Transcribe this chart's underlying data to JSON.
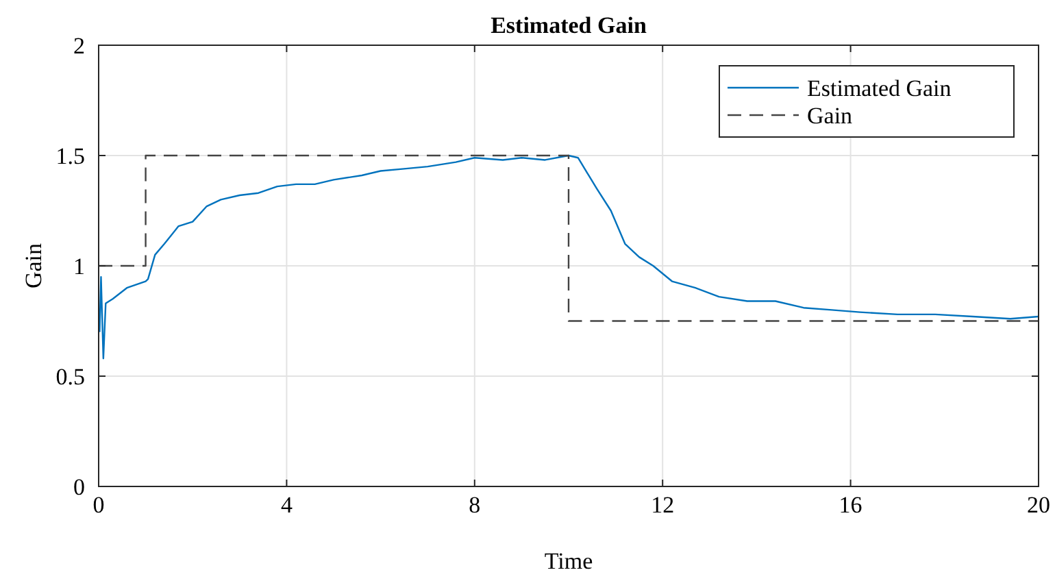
{
  "chart_data": {
    "type": "line",
    "title": "Estimated Gain",
    "xlabel": "Time",
    "ylabel": "Gain",
    "xlim": [
      0,
      20
    ],
    "ylim": [
      0,
      2
    ],
    "xticks": [
      0,
      4,
      8,
      12,
      16,
      20
    ],
    "yticks": [
      0,
      0.5,
      1,
      1.5,
      2
    ],
    "grid": true,
    "legend": "top right",
    "series": [
      {
        "name": "Estimated Gain",
        "type": "line",
        "color": "#0072bd",
        "line_style": "solid",
        "x": [
          0.02,
          0.05,
          0.1,
          0.15,
          0.3,
          0.6,
          1.0,
          1.05,
          1.2,
          1.4,
          1.7,
          2.0,
          2.3,
          2.6,
          3.0,
          3.4,
          3.8,
          4.2,
          4.6,
          5.0,
          5.6,
          6.0,
          6.5,
          7.0,
          7.6,
          8.0,
          8.6,
          9.0,
          9.5,
          10.0,
          10.2,
          10.4,
          10.6,
          10.9,
          11.2,
          11.5,
          11.8,
          12.2,
          12.7,
          13.2,
          13.8,
          14.4,
          15.0,
          15.6,
          16.2,
          17.0,
          17.8,
          18.6,
          19.4,
          20.0
        ],
        "values": [
          0.7,
          0.95,
          0.58,
          0.83,
          0.85,
          0.9,
          0.93,
          0.94,
          1.05,
          1.1,
          1.18,
          1.2,
          1.27,
          1.3,
          1.32,
          1.33,
          1.36,
          1.37,
          1.37,
          1.39,
          1.41,
          1.43,
          1.44,
          1.45,
          1.47,
          1.49,
          1.48,
          1.49,
          1.48,
          1.5,
          1.49,
          1.42,
          1.35,
          1.25,
          1.1,
          1.04,
          1.0,
          0.93,
          0.9,
          0.86,
          0.84,
          0.84,
          0.81,
          0.8,
          0.79,
          0.78,
          0.78,
          0.77,
          0.76,
          0.77
        ]
      },
      {
        "name": "Gain",
        "type": "step",
        "color": "#444444",
        "line_style": "dashed",
        "x": [
          0,
          1,
          10,
          20
        ],
        "values": [
          1,
          1.5,
          0.75,
          0.75
        ]
      }
    ]
  }
}
